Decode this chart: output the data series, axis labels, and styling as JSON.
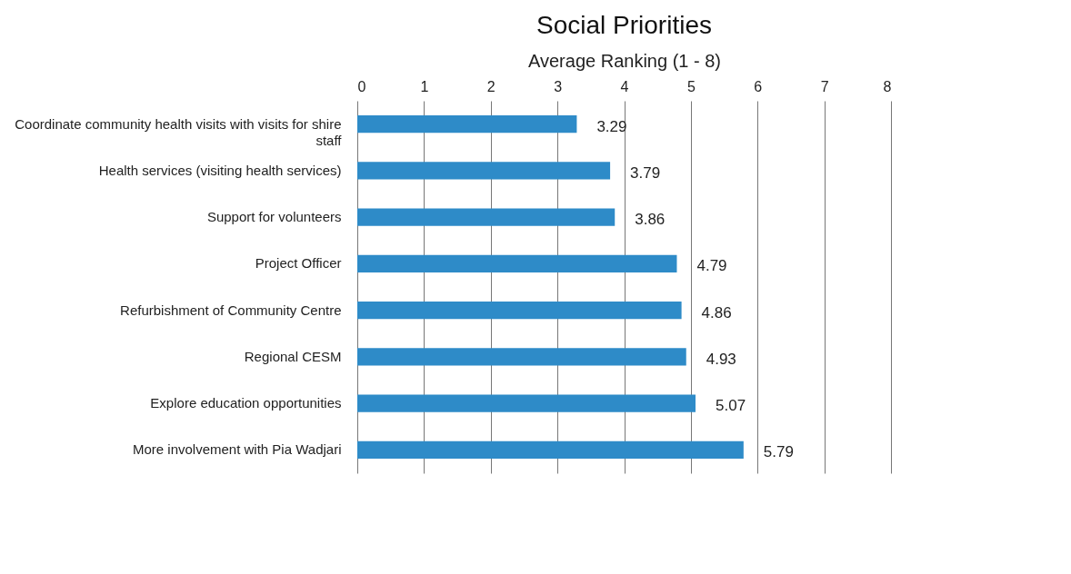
{
  "chart_data": {
    "type": "bar",
    "orientation": "horizontal",
    "title": "Social Priorities",
    "xlabel": "Average Ranking (1 - 8)",
    "categories": [
      "Coordinate community health visits with visits for shire staff",
      "Health services (visiting health services)",
      "Support for volunteers",
      "Project Officer",
      "Refurbishment of Community Centre",
      "Regional CESM",
      "Explore education opportunities",
      "More involvement with Pia Wadjari"
    ],
    "values": [
      3.29,
      3.79,
      3.86,
      4.79,
      4.86,
      4.93,
      5.07,
      5.79
    ],
    "color": "#2e8bc8",
    "xlim": [
      0,
      8
    ],
    "xticks": [
      0,
      1,
      2,
      3,
      4,
      5,
      6,
      7,
      8
    ],
    "grid": "x",
    "data_labels": true
  }
}
